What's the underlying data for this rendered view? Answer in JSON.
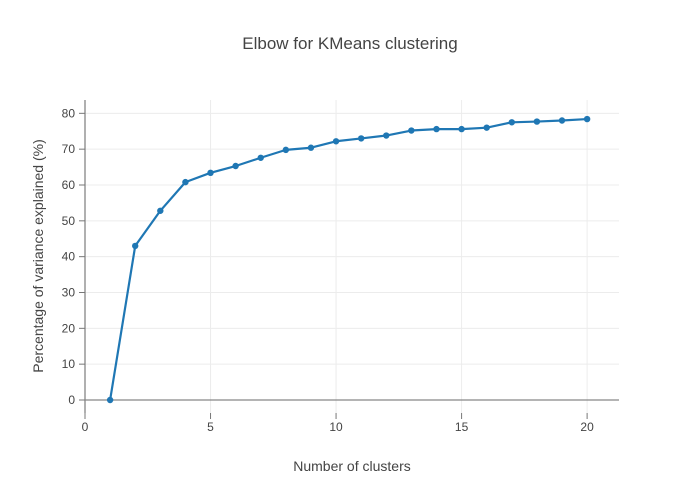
{
  "figure": {
    "title": "Elbow for KMeans clustering",
    "x_axis_title": "Number of clusters",
    "y_axis_title": "Percentage of variance explained (%)"
  },
  "colors": {
    "background": "#ffffff",
    "line": "#1f77b4",
    "marker": "#1f77b4",
    "grid": "#ececec",
    "zeroline": "#868686",
    "tick_mark": "#777777",
    "text": "#444444"
  },
  "chart_data": {
    "type": "line",
    "title": "Elbow for KMeans clustering",
    "xlabel": "Number of clusters",
    "ylabel": "Percentage of variance explained (%)",
    "legend_position": "none",
    "grid": true,
    "markers": true,
    "series": [
      {
        "name": "Percentage of variance explained",
        "x": [
          1,
          2,
          3,
          4,
          5,
          6,
          7,
          8,
          9,
          10,
          11,
          12,
          13,
          14,
          15,
          16,
          17,
          18,
          19,
          20
        ],
        "y": [
          0,
          43,
          52.8,
          60.8,
          63.4,
          65.3,
          67.6,
          69.8,
          70.4,
          72.2,
          73,
          73.8,
          75.2,
          75.6,
          75.6,
          76,
          77.5,
          77.7,
          78,
          78.4
        ]
      }
    ],
    "xticks": [
      0,
      5,
      10,
      15,
      20
    ],
    "yticks": [
      0,
      10,
      20,
      30,
      40,
      50,
      60,
      70,
      80
    ],
    "xlim": [
      0,
      21.27
    ],
    "ylim": [
      -3.63,
      83.72
    ]
  }
}
